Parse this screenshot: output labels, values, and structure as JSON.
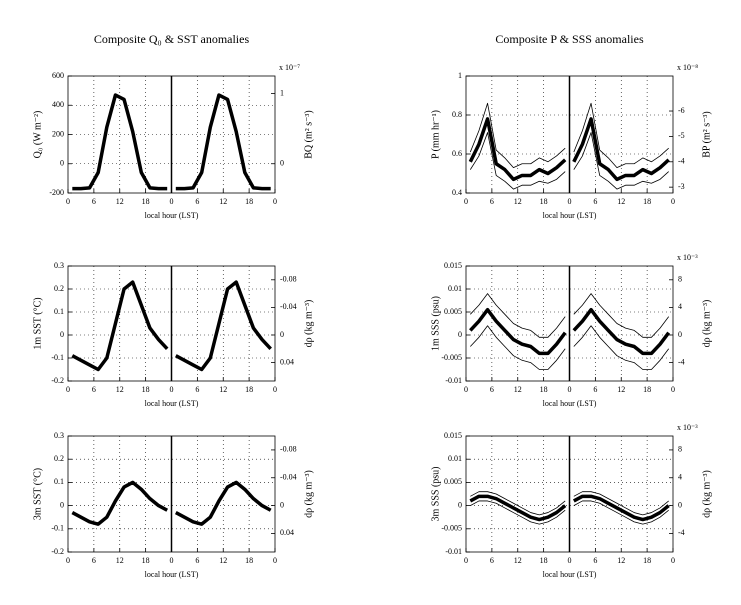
{
  "chart_data": [
    {
      "type": "line",
      "title": "Composite Q₀ & SST anomalies",
      "ylabel": "Q₀ (W m⁻²)",
      "y2label": "BQ (m² s⁻³)",
      "y2_multiplier": "x 10⁻⁷",
      "xlabel": "local hour (LST)",
      "x": [
        1,
        3,
        5,
        7,
        9,
        11,
        13,
        15,
        17,
        19,
        21,
        23,
        24,
        25,
        27,
        29,
        31,
        33,
        35,
        37,
        39,
        41,
        43,
        45,
        47
      ],
      "xlim": [
        0,
        48
      ],
      "xticks": [
        0,
        6,
        12,
        18,
        {
          "value": 24,
          "label": "0"
        },
        {
          "value": 30,
          "label": "6"
        },
        {
          "value": 36,
          "label": "12"
        },
        {
          "value": 42,
          "label": "18"
        },
        {
          "value": 48,
          "label": "0"
        }
      ],
      "ylim": [
        -200,
        600
      ],
      "yticks": [
        -200,
        0,
        200,
        400,
        600
      ],
      "y2lim": [
        -0.417,
        1.25
      ],
      "y2ticks": [
        0,
        1
      ],
      "grid": true,
      "series": [
        {
          "color": "#000000",
          "width": 3.5,
          "values": [
            -170,
            -170,
            -165,
            -60,
            250,
            470,
            440,
            220,
            -60,
            -165,
            -170,
            -170,
            null,
            -170,
            -170,
            -165,
            -60,
            250,
            470,
            440,
            220,
            -60,
            -165,
            -170,
            -170
          ]
        }
      ]
    },
    {
      "type": "line",
      "title": "Composite P & SSS anomalies",
      "ylabel": "P (mm hr⁻¹)",
      "y2label": "BP (m² s⁻³)",
      "y2_multiplier": "x 10⁻⁸",
      "xlabel": "local hour (LST)",
      "x": [
        1,
        3,
        5,
        7,
        9,
        11,
        13,
        15,
        17,
        19,
        21,
        23,
        24,
        25,
        27,
        29,
        31,
        33,
        35,
        37,
        39,
        41,
        43,
        45,
        47
      ],
      "xlim": [
        0,
        48
      ],
      "xticks": [
        0,
        6,
        12,
        18,
        {
          "value": 24,
          "label": "0"
        },
        {
          "value": 30,
          "label": "6"
        },
        {
          "value": 36,
          "label": "12"
        },
        {
          "value": 42,
          "label": "18"
        },
        {
          "value": 48,
          "label": "0"
        }
      ],
      "ylim": [
        0.4,
        1
      ],
      "yticks": [
        0.4,
        0.6,
        0.8,
        1
      ],
      "y2lim": [
        -2.77,
        -7.38
      ],
      "y2ticks": [
        -6,
        -5,
        -4,
        -3
      ],
      "grid": true,
      "series": [
        {
          "color": "#000000",
          "width": 3.5,
          "values": [
            0.56,
            0.65,
            0.78,
            0.55,
            0.52,
            0.47,
            0.49,
            0.49,
            0.52,
            0.5,
            0.53,
            0.57,
            null,
            0.56,
            0.65,
            0.78,
            0.55,
            0.52,
            0.47,
            0.49,
            0.49,
            0.52,
            0.5,
            0.53,
            0.57
          ]
        },
        {
          "color": "#000000",
          "width": 0.8,
          "values": [
            0.61,
            0.72,
            0.86,
            0.62,
            0.58,
            0.53,
            0.55,
            0.55,
            0.58,
            0.56,
            0.59,
            0.63,
            null,
            0.61,
            0.72,
            0.86,
            0.62,
            0.58,
            0.53,
            0.55,
            0.55,
            0.58,
            0.56,
            0.59,
            0.63
          ]
        },
        {
          "color": "#000000",
          "width": 0.8,
          "values": [
            0.52,
            0.59,
            0.71,
            0.49,
            0.46,
            0.42,
            0.44,
            0.44,
            0.46,
            0.45,
            0.47,
            0.51,
            null,
            0.52,
            0.59,
            0.71,
            0.49,
            0.46,
            0.42,
            0.44,
            0.44,
            0.46,
            0.45,
            0.47,
            0.51
          ]
        }
      ]
    },
    {
      "type": "line",
      "ylabel": "1m SST (°C)",
      "y2label": "dρ (kg m⁻³)",
      "xlabel": "local hour (LST)",
      "x": [
        1,
        3,
        5,
        7,
        9,
        11,
        13,
        15,
        17,
        19,
        21,
        23,
        24,
        25,
        27,
        29,
        31,
        33,
        35,
        37,
        39,
        41,
        43,
        45,
        47
      ],
      "xlim": [
        0,
        48
      ],
      "xticks": [
        0,
        6,
        12,
        18,
        {
          "value": 24,
          "label": "0"
        },
        {
          "value": 30,
          "label": "6"
        },
        {
          "value": 36,
          "label": "12"
        },
        {
          "value": 42,
          "label": "18"
        },
        {
          "value": 48,
          "label": "0"
        }
      ],
      "ylim": [
        -0.2,
        0.3
      ],
      "yticks": [
        -0.2,
        -0.1,
        0,
        0.1,
        0.2,
        0.3
      ],
      "y2lim": [
        0.0667,
        -0.1
      ],
      "y2ticks": [
        -0.08,
        -0.04,
        0,
        0.04
      ],
      "grid": true,
      "series": [
        {
          "color": "#000000",
          "width": 3.5,
          "values": [
            -0.09,
            -0.11,
            -0.13,
            -0.15,
            -0.1,
            0.05,
            0.2,
            0.23,
            0.13,
            0.03,
            -0.02,
            -0.06,
            null,
            -0.09,
            -0.11,
            -0.13,
            -0.15,
            -0.1,
            0.05,
            0.2,
            0.23,
            0.13,
            0.03,
            -0.02,
            -0.06
          ]
        }
      ]
    },
    {
      "type": "line",
      "ylabel": "1m SSS (psu)",
      "y2label": "dρ (kg m⁻³)",
      "y2_multiplier": "x 10⁻³",
      "xlabel": "local hour (LST)",
      "x": [
        1,
        3,
        5,
        7,
        9,
        11,
        13,
        15,
        17,
        19,
        21,
        23,
        24,
        25,
        27,
        29,
        31,
        33,
        35,
        37,
        39,
        41,
        43,
        45,
        47
      ],
      "xlim": [
        0,
        48
      ],
      "xticks": [
        0,
        6,
        12,
        18,
        {
          "value": 24,
          "label": "0"
        },
        {
          "value": 30,
          "label": "6"
        },
        {
          "value": 36,
          "label": "12"
        },
        {
          "value": 42,
          "label": "18"
        },
        {
          "value": 48,
          "label": "0"
        }
      ],
      "ylim": [
        -0.01,
        0.015
      ],
      "yticks": [
        -0.01,
        -0.005,
        0,
        0.005,
        0.01,
        0.015
      ],
      "y2lim": [
        -6.67,
        10
      ],
      "y2ticks": [
        -4,
        0,
        4,
        8
      ],
      "grid": true,
      "series": [
        {
          "color": "#000000",
          "width": 3.5,
          "values": [
            0.001,
            0.003,
            0.0055,
            0.003,
            0.001,
            -0.001,
            -0.002,
            -0.0025,
            -0.004,
            -0.004,
            -0.002,
            0.0005,
            null,
            0.001,
            0.003,
            0.0055,
            0.003,
            0.001,
            -0.001,
            -0.002,
            -0.0025,
            -0.004,
            -0.004,
            -0.002,
            0.0005
          ]
        },
        {
          "color": "#000000",
          "width": 0.8,
          "values": [
            0.0045,
            0.0065,
            0.009,
            0.0065,
            0.0045,
            0.0025,
            0.0015,
            0.001,
            -0.0005,
            -0.0005,
            0.0015,
            0.004,
            null,
            0.0045,
            0.0065,
            0.009,
            0.0065,
            0.0045,
            0.0025,
            0.0015,
            0.001,
            -0.0005,
            -0.0005,
            0.0015,
            0.004
          ]
        },
        {
          "color": "#000000",
          "width": 0.8,
          "values": [
            -0.0025,
            -0.0005,
            0.002,
            -0.0005,
            -0.0025,
            -0.0045,
            -0.0055,
            -0.006,
            -0.0075,
            -0.0075,
            -0.0055,
            -0.003,
            null,
            -0.0025,
            -0.0005,
            0.002,
            -0.0005,
            -0.0025,
            -0.0045,
            -0.0055,
            -0.006,
            -0.0075,
            -0.0075,
            -0.0055,
            -0.003
          ]
        }
      ]
    },
    {
      "type": "line",
      "ylabel": "3m SST (°C)",
      "y2label": "dρ (kg m⁻³)",
      "xlabel": "local hour (LST)",
      "x": [
        1,
        3,
        5,
        7,
        9,
        11,
        13,
        15,
        17,
        19,
        21,
        23,
        24,
        25,
        27,
        29,
        31,
        33,
        35,
        37,
        39,
        41,
        43,
        45,
        47
      ],
      "xlim": [
        0,
        48
      ],
      "xticks": [
        0,
        6,
        12,
        18,
        {
          "value": 24,
          "label": "0"
        },
        {
          "value": 30,
          "label": "6"
        },
        {
          "value": 36,
          "label": "12"
        },
        {
          "value": 42,
          "label": "18"
        },
        {
          "value": 48,
          "label": "0"
        }
      ],
      "ylim": [
        -0.2,
        0.3
      ],
      "yticks": [
        -0.2,
        -0.1,
        0,
        0.1,
        0.2,
        0.3
      ],
      "y2lim": [
        0.0667,
        -0.1
      ],
      "y2ticks": [
        -0.08,
        -0.04,
        0,
        0.04
      ],
      "grid": true,
      "series": [
        {
          "color": "#000000",
          "width": 3.5,
          "values": [
            -0.03,
            -0.05,
            -0.07,
            -0.08,
            -0.05,
            0.02,
            0.08,
            0.1,
            0.07,
            0.03,
            0,
            -0.02,
            null,
            -0.03,
            -0.05,
            -0.07,
            -0.08,
            -0.05,
            0.02,
            0.08,
            0.1,
            0.07,
            0.03,
            0,
            -0.02
          ]
        }
      ]
    },
    {
      "type": "line",
      "ylabel": "3m SSS (psu)",
      "y2label": "dρ (kg m⁻³)",
      "y2_multiplier": "x 10⁻³",
      "xlabel": "local hour (LST)",
      "x": [
        1,
        3,
        5,
        7,
        9,
        11,
        13,
        15,
        17,
        19,
        21,
        23,
        24,
        25,
        27,
        29,
        31,
        33,
        35,
        37,
        39,
        41,
        43,
        45,
        47
      ],
      "xlim": [
        0,
        48
      ],
      "xticks": [
        0,
        6,
        12,
        18,
        {
          "value": 24,
          "label": "0"
        },
        {
          "value": 30,
          "label": "6"
        },
        {
          "value": 36,
          "label": "12"
        },
        {
          "value": 42,
          "label": "18"
        },
        {
          "value": 48,
          "label": "0"
        }
      ],
      "ylim": [
        -0.01,
        0.015
      ],
      "yticks": [
        -0.01,
        -0.005,
        0,
        0.005,
        0.01,
        0.015
      ],
      "y2lim": [
        -6.67,
        10
      ],
      "y2ticks": [
        -4,
        0,
        4,
        8
      ],
      "grid": true,
      "series": [
        {
          "color": "#000000",
          "width": 3.5,
          "values": [
            0.001,
            0.002,
            0.002,
            0.0015,
            0.0005,
            -0.0005,
            -0.0015,
            -0.0025,
            -0.003,
            -0.0025,
            -0.0015,
            0,
            null,
            0.001,
            0.002,
            0.002,
            0.0015,
            0.0005,
            -0.0005,
            -0.0015,
            -0.0025,
            -0.003,
            -0.0025,
            -0.0015,
            0
          ]
        },
        {
          "color": "#000000",
          "width": 0.8,
          "values": [
            0.002,
            0.003,
            0.003,
            0.0025,
            0.0015,
            0.0005,
            -0.0005,
            -0.0015,
            -0.002,
            -0.0015,
            -0.0005,
            0.001,
            null,
            0.002,
            0.003,
            0.003,
            0.0025,
            0.0015,
            0.0005,
            -0.0005,
            -0.0015,
            -0.002,
            -0.0015,
            -0.0005,
            0.001
          ]
        },
        {
          "color": "#000000",
          "width": 0.8,
          "values": [
            0,
            0.001,
            0.001,
            0.0005,
            -0.0005,
            -0.0015,
            -0.0025,
            -0.0035,
            -0.004,
            -0.0035,
            -0.0025,
            -0.001,
            null,
            0,
            0.001,
            0.001,
            0.0005,
            -0.0005,
            -0.0015,
            -0.0025,
            -0.0035,
            -0.004,
            -0.0035,
            -0.0025,
            -0.001
          ]
        }
      ]
    }
  ]
}
